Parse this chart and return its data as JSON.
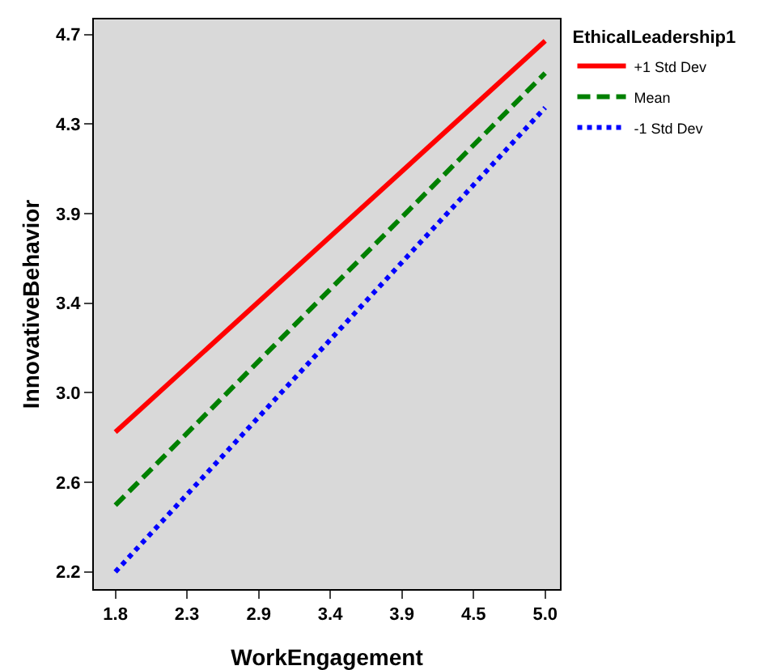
{
  "chart_data": {
    "type": "line",
    "xlabel": "WorkEngagement",
    "ylabel": "InnovativeBehavior",
    "legend_title": "EthicalLeadership1",
    "x": [
      1.8,
      5.0
    ],
    "series": [
      {
        "name": "+1 Std Dev",
        "color": "#ff0000",
        "line_style": "solid",
        "values": [
          2.85,
          4.67
        ]
      },
      {
        "name": "Mean",
        "color": "#008000",
        "line_style": "dashed",
        "values": [
          2.51,
          4.52
        ]
      },
      {
        "name": "-1 Std Dev",
        "color": "#0000ff",
        "line_style": "dotted",
        "values": [
          2.2,
          4.36
        ]
      }
    ],
    "xlim": [
      1.64,
      5.11
    ],
    "ylim": [
      2.12,
      4.77
    ],
    "xticks": [
      1.8,
      {
        "value": 2.333,
        "label": "2.3"
      },
      {
        "value": 2.867,
        "label": "2.9"
      },
      3.4,
      {
        "value": 3.933,
        "label": "3.9"
      },
      {
        "value": 4.467,
        "label": "4.5"
      },
      {
        "value": 5.0,
        "label": "5.0"
      }
    ],
    "yticks": [
      2.2,
      {
        "value": 2.617,
        "label": "2.6"
      },
      {
        "value": 3.033,
        "label": "3.0"
      },
      {
        "value": 3.45,
        "label": "3.4"
      },
      {
        "value": 3.867,
        "label": "3.9"
      },
      {
        "value": 4.283,
        "label": "4.3"
      },
      4.7
    ],
    "grid": false,
    "legend": "top right",
    "marker": "none"
  }
}
